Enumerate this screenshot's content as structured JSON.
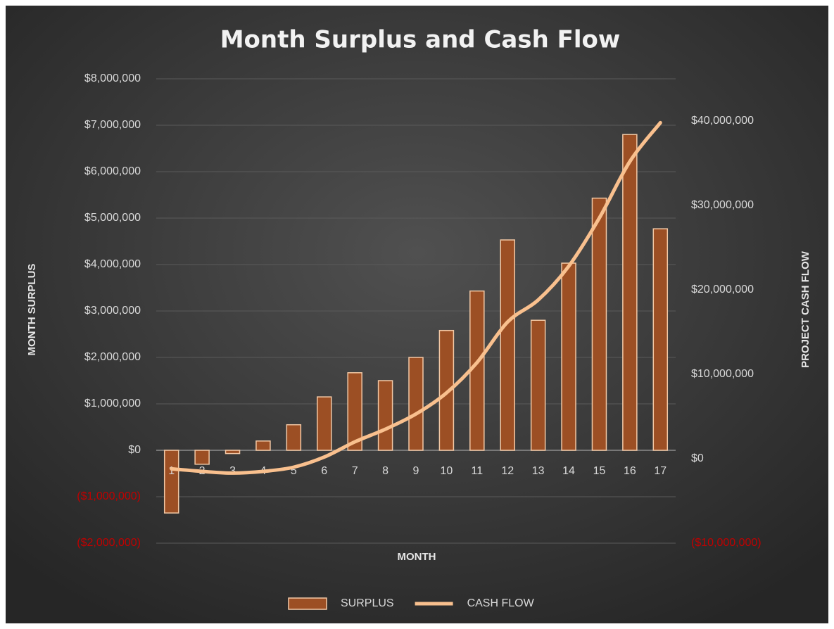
{
  "chart_data": {
    "type": "bar_line",
    "title": "Month Surplus and Cash Flow",
    "x_label": "MONTH",
    "y_label": "MONTH SURPLUS",
    "y2_label": "PROJECT CASH FLOW",
    "categories": [
      "1",
      "2",
      "3",
      "4",
      "5",
      "6",
      "7",
      "8",
      "9",
      "10",
      "11",
      "12",
      "13",
      "14",
      "15",
      "16",
      "17"
    ],
    "series": [
      {
        "name": "SURPLUS",
        "type": "bar",
        "color": "#9c4f24",
        "values": [
          -1350000,
          -300000,
          -70000,
          200000,
          550000,
          1150000,
          1670000,
          1500000,
          2000000,
          2580000,
          3430000,
          4530000,
          2800000,
          4030000,
          5430000,
          6800000,
          4770000
        ]
      },
      {
        "name": "CASH FLOW",
        "type": "line",
        "axis": "y2",
        "color": "#f9c08e",
        "values": [
          -1200000,
          -1500000,
          -1700000,
          -1500000,
          -1000000,
          200000,
          2000000,
          3500000,
          5300000,
          7800000,
          11400000,
          16200000,
          18800000,
          22800000,
          28500000,
          35200000,
          39800000
        ]
      }
    ],
    "ylim": [
      -2000000,
      8000000
    ],
    "yticks": [
      {
        "value": -2000000,
        "label": "($2,000,000)"
      },
      {
        "value": -1000000,
        "label": "($1,000,000)"
      },
      {
        "value": 0,
        "label": "$0"
      },
      {
        "value": 1000000,
        "label": "$1,000,000"
      },
      {
        "value": 2000000,
        "label": "$2,000,000"
      },
      {
        "value": 3000000,
        "label": "$3,000,000"
      },
      {
        "value": 4000000,
        "label": "$4,000,000"
      },
      {
        "value": 5000000,
        "label": "$5,000,000"
      },
      {
        "value": 6000000,
        "label": "$6,000,000"
      },
      {
        "value": 7000000,
        "label": "$7,000,000"
      },
      {
        "value": 8000000,
        "label": "$8,000,000"
      }
    ],
    "y2lim": [
      -10000000,
      45000000
    ],
    "y2ticks": [
      {
        "value": -10000000,
        "label": "($10,000,000)"
      },
      {
        "value": 0,
        "label": "$0"
      },
      {
        "value": 10000000,
        "label": "$10,000,000"
      },
      {
        "value": 20000000,
        "label": "$20,000,000"
      },
      {
        "value": 30000000,
        "label": "$30,000,000"
      },
      {
        "value": 40000000,
        "label": "$40,000,000"
      }
    ],
    "negative_label_color": "#c00000",
    "grid": true,
    "legend": "bottom"
  }
}
